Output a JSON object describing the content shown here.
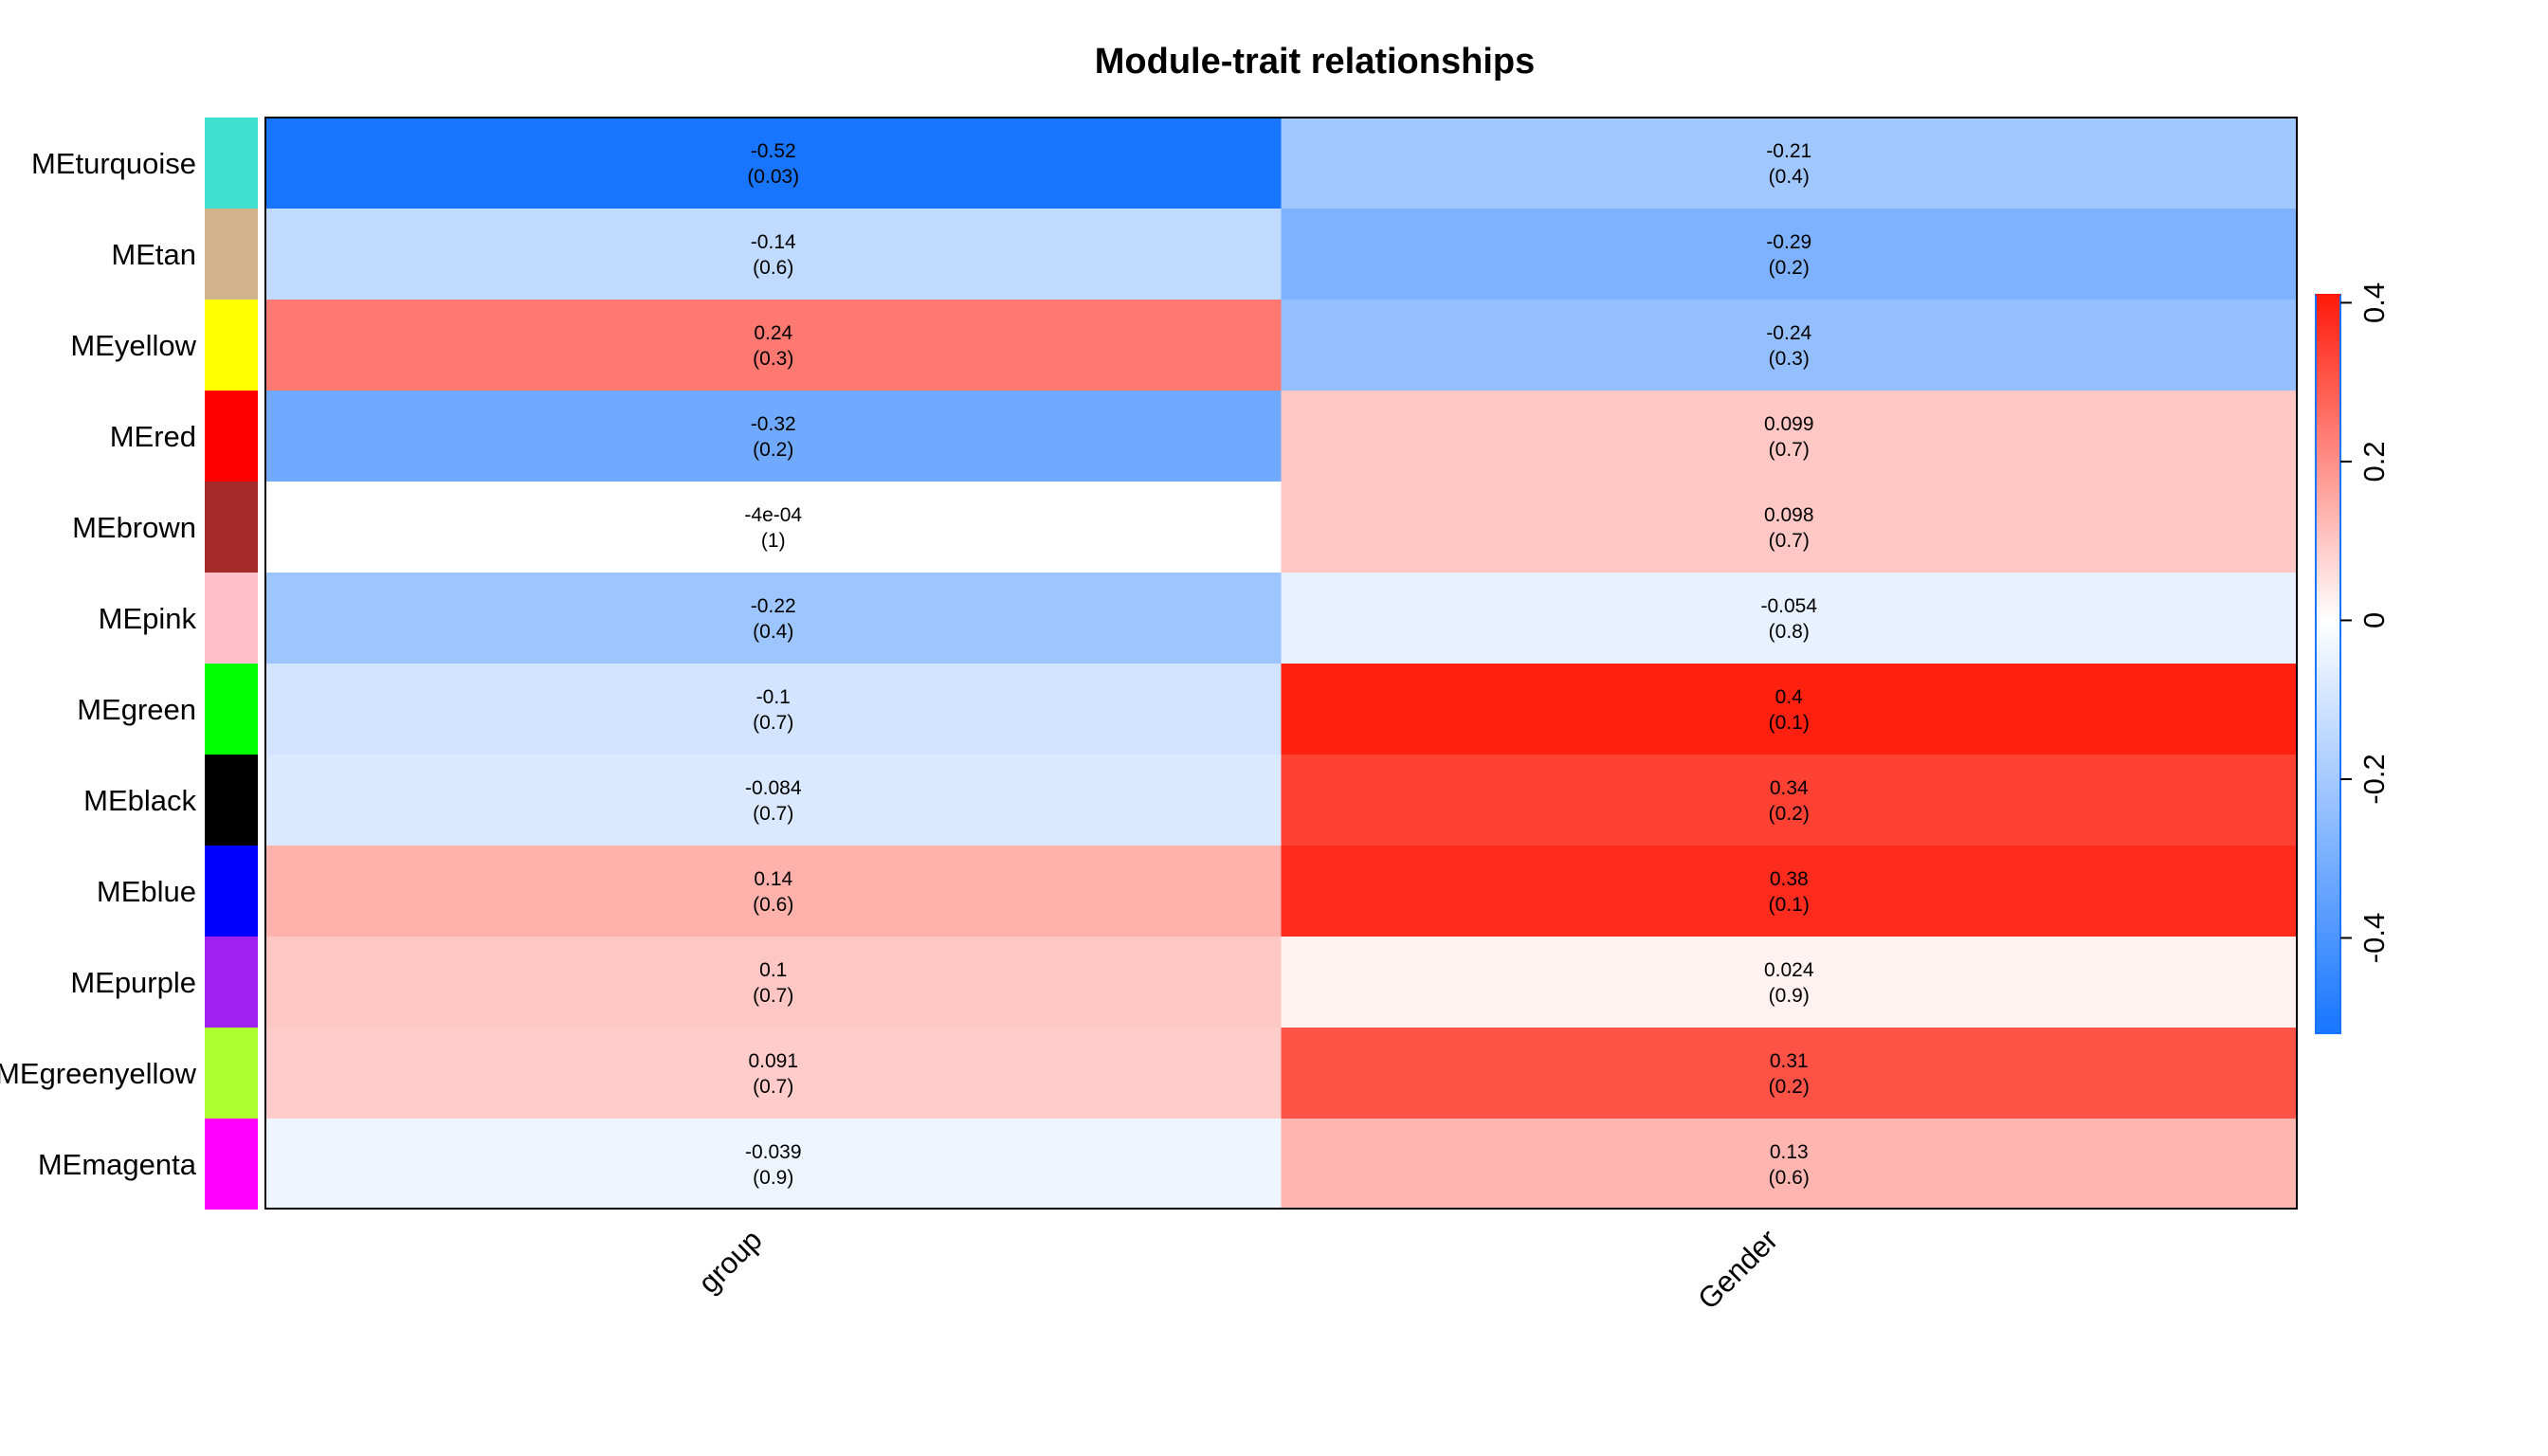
{
  "chart_data": {
    "type": "heatmap",
    "title": "Module-trait relationships",
    "x_categories": [
      "group",
      "Gender"
    ],
    "y_categories": [
      "MEturquoise",
      "MEtan",
      "MEyellow",
      "MEred",
      "MEbrown",
      "MEpink",
      "MEgreen",
      "MEblack",
      "MEblue",
      "MEpurple",
      "MEgreenyellow",
      "MEmagenta"
    ],
    "module_colors": [
      "#40E0D0",
      "#D2B48C",
      "#FFFF00",
      "#FF0000",
      "#A52A2A",
      "#FFC0CB",
      "#00FF00",
      "#000000",
      "#0000FF",
      "#A020F0",
      "#ADFF2F",
      "#FF00FF"
    ],
    "cells": [
      [
        {
          "value": -0.52,
          "label": "-0.52",
          "p": "(0.03)"
        },
        {
          "value": -0.21,
          "label": "-0.21",
          "p": "(0.4)"
        }
      ],
      [
        {
          "value": -0.14,
          "label": "-0.14",
          "p": "(0.6)"
        },
        {
          "value": -0.29,
          "label": "-0.29",
          "p": "(0.2)"
        }
      ],
      [
        {
          "value": 0.24,
          "label": "0.24",
          "p": "(0.3)"
        },
        {
          "value": -0.24,
          "label": "-0.24",
          "p": "(0.3)"
        }
      ],
      [
        {
          "value": -0.32,
          "label": "-0.32",
          "p": "(0.2)"
        },
        {
          "value": 0.099,
          "label": "0.099",
          "p": "(0.7)"
        }
      ],
      [
        {
          "value": -0.0004,
          "label": "-4e-04",
          "p": "(1)"
        },
        {
          "value": 0.098,
          "label": "0.098",
          "p": "(0.7)"
        }
      ],
      [
        {
          "value": -0.22,
          "label": "-0.22",
          "p": "(0.4)"
        },
        {
          "value": -0.054,
          "label": "-0.054",
          "p": "(0.8)"
        }
      ],
      [
        {
          "value": -0.1,
          "label": "-0.1",
          "p": "(0.7)"
        },
        {
          "value": 0.4,
          "label": "0.4",
          "p": "(0.1)"
        }
      ],
      [
        {
          "value": -0.084,
          "label": "-0.084",
          "p": "(0.7)"
        },
        {
          "value": 0.34,
          "label": "0.34",
          "p": "(0.2)"
        }
      ],
      [
        {
          "value": 0.14,
          "label": "0.14",
          "p": "(0.6)"
        },
        {
          "value": 0.38,
          "label": "0.38",
          "p": "(0.1)"
        }
      ],
      [
        {
          "value": 0.1,
          "label": "0.1",
          "p": "(0.7)"
        },
        {
          "value": 0.024,
          "label": "0.024",
          "p": "(0.9)"
        }
      ],
      [
        {
          "value": 0.091,
          "label": "0.091",
          "p": "(0.7)"
        },
        {
          "value": 0.31,
          "label": "0.31",
          "p": "(0.2)"
        }
      ],
      [
        {
          "value": -0.039,
          "label": "-0.039",
          "p": "(0.9)"
        },
        {
          "value": 0.13,
          "label": "0.13",
          "p": "(0.6)"
        }
      ]
    ],
    "colorbar": {
      "range": [
        -0.52,
        0.41
      ],
      "ticks": [
        -0.4,
        -0.2,
        0,
        0.2,
        0.4
      ],
      "tick_labels": [
        "-0.4",
        "-0.2",
        "0",
        "0.2",
        "0.4"
      ],
      "color_low": "#1775FF",
      "color_mid": "#FFFFFF",
      "color_high": "#FF1A0A"
    },
    "xlabel": "",
    "ylabel": "",
    "grid": false
  }
}
